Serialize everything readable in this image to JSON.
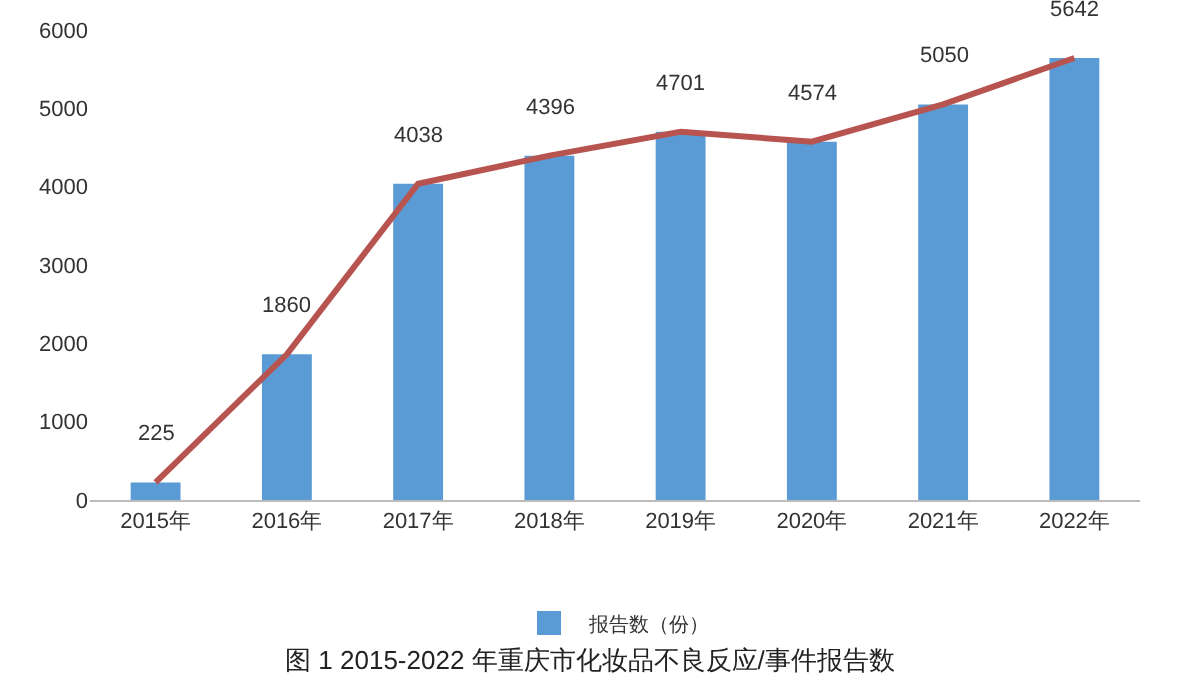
{
  "chart_data": {
    "type": "bar",
    "title": "图 1 2015-2022 年重庆市化妆品不良反应/事件报告数",
    "categories": [
      "2015年",
      "2016年",
      "2017年",
      "2018年",
      "2019年",
      "2020年",
      "2021年",
      "2022年"
    ],
    "series": [
      {
        "name": "报告数（份）",
        "color": "#5b9bd5",
        "values": [
          225,
          1860,
          4038,
          4396,
          4701,
          4574,
          5050,
          5642
        ],
        "value_labels": [
          "225",
          "1860",
          "4038",
          "4396",
          "4701",
          "4574",
          "5050",
          "5642"
        ]
      },
      {
        "type": "line",
        "color": "#b85450",
        "values": [
          225,
          1860,
          4038,
          4396,
          4701,
          4574,
          5050,
          5642
        ],
        "marker": "none",
        "line_style": "solid"
      }
    ],
    "ylim": [
      0,
      6000
    ],
    "yticks": [
      0,
      1000,
      2000,
      3000,
      4000,
      5000,
      6000
    ],
    "grid": false,
    "legend": "bottom"
  }
}
